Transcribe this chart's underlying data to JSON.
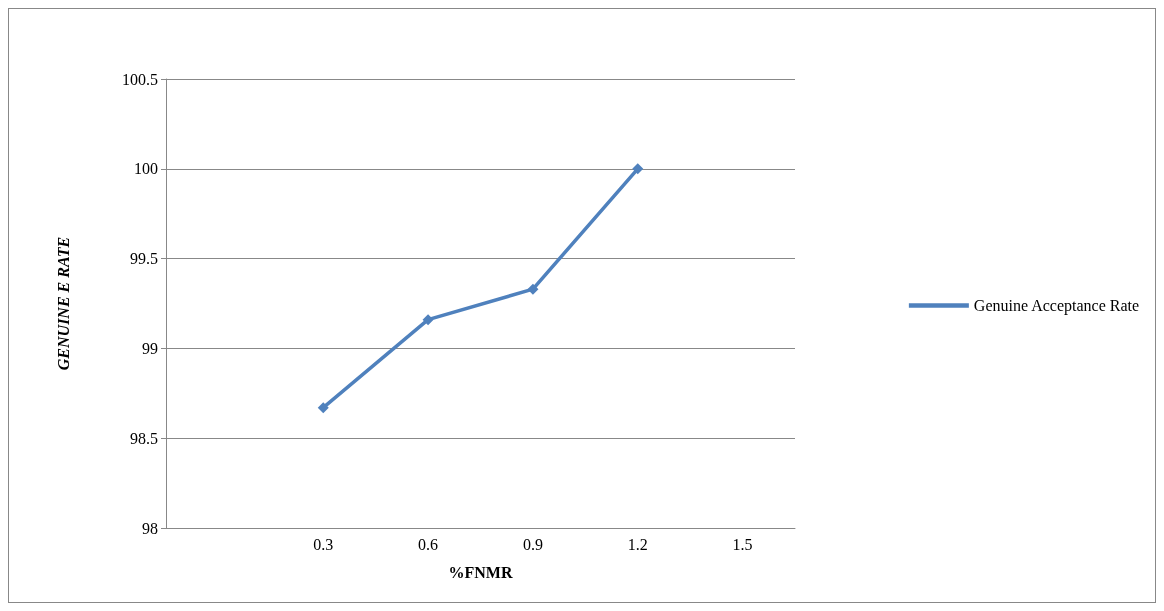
{
  "chart_data": {
    "type": "line",
    "categories": [
      null,
      "0.3",
      "0.6",
      "0.9",
      "1.2",
      "1.5"
    ],
    "series": [
      {
        "name": "Genuine Acceptance Rate",
        "color": "#4f81bd",
        "values": [
          null,
          98.67,
          99.16,
          99.33,
          100.0,
          null
        ]
      }
    ],
    "xlabel": "%FNMR",
    "ylabel": "GENUINE E RATE",
    "ylim": [
      98,
      100.5
    ],
    "yticks": [
      98,
      98.5,
      99,
      99.5,
      100,
      100.5
    ],
    "grid": "y",
    "legend": "right",
    "marker": "diamond",
    "line_style": "solid"
  }
}
